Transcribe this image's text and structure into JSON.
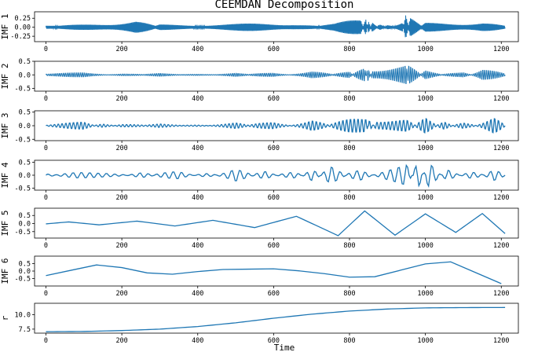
{
  "chart_data": {
    "type": "line",
    "title": "CEEMDAN Decomposition",
    "xlabel": "Time",
    "xlim": [
      -30,
      1245
    ],
    "xticks": [
      0,
      200,
      400,
      600,
      800,
      1000,
      1200
    ],
    "xtick_labels": [
      "0",
      "200",
      "400",
      "600",
      "800",
      "1000",
      "1200"
    ],
    "line_color": "#1f77b4",
    "panels": [
      {
        "ylabel": "IMF 1",
        "ylim": [
          -0.4,
          0.43
        ],
        "yticks": [
          -0.25,
          0.0,
          0.25
        ],
        "ytick_labels": [
          "-0.25",
          "0.00",
          "0.25"
        ],
        "x": [
          0,
          100,
          236,
          300,
          500,
          650,
          760,
          830,
          843,
          850,
          860,
          880,
          900,
          940,
          948,
          960,
          1000,
          1150,
          1210
        ],
        "y": [
          0.02,
          -0.05,
          -0.18,
          0.04,
          0.06,
          0.1,
          -0.06,
          -0.3,
          0.42,
          -0.34,
          0.28,
          -0.15,
          0.08,
          -0.12,
          0.37,
          -0.25,
          0.09,
          0.14,
          0.0
        ]
      },
      {
        "ylabel": "IMF 2",
        "ylim": [
          -0.6,
          0.5
        ],
        "yticks": [
          -0.5,
          0.0,
          0.5
        ],
        "ytick_labels": [
          "-0.5",
          "0.0",
          "0.5"
        ],
        "x": [
          0,
          100,
          200,
          300,
          400,
          500,
          600,
          700,
          800,
          840,
          848,
          860,
          950,
          955,
          1000,
          1100,
          1150,
          1210
        ],
        "y": [
          0.02,
          0.08,
          -0.05,
          0.04,
          -0.04,
          0.05,
          -0.1,
          0.15,
          -0.12,
          0.48,
          -0.54,
          0.3,
          0.42,
          -0.4,
          0.15,
          -0.2,
          0.3,
          0.02
        ]
      },
      {
        "ylabel": "IMF 3",
        "ylim": [
          -0.55,
          0.55
        ],
        "yticks": [
          -0.5,
          0.0,
          0.5
        ],
        "ytick_labels": [
          "-0.5",
          "0.0",
          "0.5"
        ],
        "x": [
          0,
          100,
          150,
          200,
          300,
          400,
          500,
          600,
          700,
          800,
          845,
          852,
          870,
          950,
          1000,
          1050,
          1100,
          1180,
          1210
        ],
        "y": [
          0.0,
          0.15,
          -0.12,
          0.08,
          -0.05,
          0.04,
          -0.1,
          0.2,
          -0.25,
          0.3,
          0.5,
          -0.45,
          0.32,
          0.25,
          -0.3,
          0.2,
          -0.25,
          0.35,
          0.0
        ]
      },
      {
        "ylabel": "IMF 4",
        "ylim": [
          -0.58,
          0.58
        ],
        "yticks": [
          -0.5,
          0.0,
          0.5
        ],
        "ytick_labels": [
          "-0.5",
          "0.0",
          "0.5"
        ],
        "x": [
          0,
          80,
          160,
          250,
          350,
          420,
          500,
          580,
          650,
          700,
          750,
          830,
          900,
          950,
          980,
          1010,
          1060,
          1120,
          1180,
          1210
        ],
        "y": [
          -0.05,
          0.1,
          0.15,
          -0.1,
          0.2,
          -0.15,
          0.25,
          -0.2,
          0.3,
          -0.3,
          0.35,
          -0.35,
          0.4,
          0.5,
          -0.55,
          0.55,
          -0.35,
          0.3,
          -0.25,
          0.0
        ]
      },
      {
        "ylabel": "IMF 5",
        "ylim": [
          -0.9,
          0.95
        ],
        "yticks": [
          -0.5,
          0.0,
          0.5
        ],
        "ytick_labels": [
          "-0.5",
          "0.0",
          "0.5"
        ],
        "x": [
          0,
          60,
          140,
          240,
          340,
          440,
          550,
          660,
          770,
          840,
          920,
          1000,
          1080,
          1150,
          1210
        ],
        "y": [
          -0.02,
          0.1,
          -0.08,
          0.15,
          -0.15,
          0.2,
          -0.25,
          0.45,
          -0.75,
          0.78,
          -0.72,
          0.6,
          -0.55,
          0.62,
          -0.62
        ]
      },
      {
        "ylabel": "IMF 6",
        "ylim": [
          -1.0,
          1.0
        ],
        "yticks": [
          -0.5,
          0.0,
          0.5
        ],
        "ytick_labels": [
          "-0.5",
          "0.0",
          "0.5"
        ],
        "x": [
          0,
          150,
          300,
          450,
          600,
          700,
          840,
          1050,
          1210
        ],
        "y": [
          -0.3,
          0.5,
          -0.3,
          0.1,
          0.15,
          -0.05,
          -0.55,
          0.8,
          -0.95
        ]
      },
      {
        "ylabel": "r",
        "ylim": [
          6.8,
          12.0
        ],
        "yticks": [
          7.5,
          10.0
        ],
        "ytick_labels": [
          "7.5",
          "10.0"
        ],
        "x": [
          0,
          100,
          200,
          300,
          400,
          500,
          600,
          700,
          800,
          900,
          1000,
          1100,
          1210
        ],
        "y": [
          7.05,
          7.1,
          7.25,
          7.5,
          7.95,
          8.6,
          9.4,
          10.1,
          10.65,
          11.0,
          11.2,
          11.25,
          11.27
        ]
      }
    ]
  }
}
